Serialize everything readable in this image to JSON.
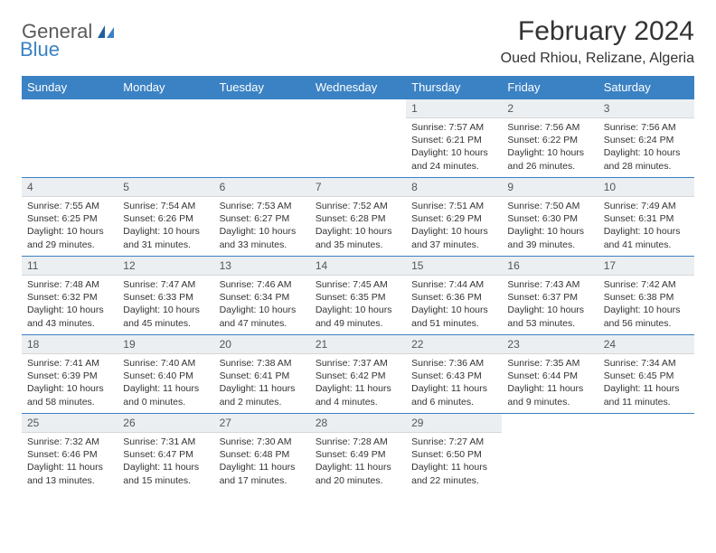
{
  "brand": {
    "name1": "General",
    "name2": "Blue"
  },
  "title": "February 2024",
  "location": "Oued Rhiou, Relizane, Algeria",
  "colors": {
    "accent": "#3b82c4",
    "daynum_bg": "#eceff1",
    "text": "#333333",
    "logo_gray": "#5a5a5a"
  },
  "dow": [
    "Sunday",
    "Monday",
    "Tuesday",
    "Wednesday",
    "Thursday",
    "Friday",
    "Saturday"
  ],
  "weeks": [
    [
      null,
      null,
      null,
      null,
      {
        "n": "1",
        "sr": "Sunrise: 7:57 AM",
        "ss": "Sunset: 6:21 PM",
        "dl": "Daylight: 10 hours and 24 minutes."
      },
      {
        "n": "2",
        "sr": "Sunrise: 7:56 AM",
        "ss": "Sunset: 6:22 PM",
        "dl": "Daylight: 10 hours and 26 minutes."
      },
      {
        "n": "3",
        "sr": "Sunrise: 7:56 AM",
        "ss": "Sunset: 6:24 PM",
        "dl": "Daylight: 10 hours and 28 minutes."
      }
    ],
    [
      {
        "n": "4",
        "sr": "Sunrise: 7:55 AM",
        "ss": "Sunset: 6:25 PM",
        "dl": "Daylight: 10 hours and 29 minutes."
      },
      {
        "n": "5",
        "sr": "Sunrise: 7:54 AM",
        "ss": "Sunset: 6:26 PM",
        "dl": "Daylight: 10 hours and 31 minutes."
      },
      {
        "n": "6",
        "sr": "Sunrise: 7:53 AM",
        "ss": "Sunset: 6:27 PM",
        "dl": "Daylight: 10 hours and 33 minutes."
      },
      {
        "n": "7",
        "sr": "Sunrise: 7:52 AM",
        "ss": "Sunset: 6:28 PM",
        "dl": "Daylight: 10 hours and 35 minutes."
      },
      {
        "n": "8",
        "sr": "Sunrise: 7:51 AM",
        "ss": "Sunset: 6:29 PM",
        "dl": "Daylight: 10 hours and 37 minutes."
      },
      {
        "n": "9",
        "sr": "Sunrise: 7:50 AM",
        "ss": "Sunset: 6:30 PM",
        "dl": "Daylight: 10 hours and 39 minutes."
      },
      {
        "n": "10",
        "sr": "Sunrise: 7:49 AM",
        "ss": "Sunset: 6:31 PM",
        "dl": "Daylight: 10 hours and 41 minutes."
      }
    ],
    [
      {
        "n": "11",
        "sr": "Sunrise: 7:48 AM",
        "ss": "Sunset: 6:32 PM",
        "dl": "Daylight: 10 hours and 43 minutes."
      },
      {
        "n": "12",
        "sr": "Sunrise: 7:47 AM",
        "ss": "Sunset: 6:33 PM",
        "dl": "Daylight: 10 hours and 45 minutes."
      },
      {
        "n": "13",
        "sr": "Sunrise: 7:46 AM",
        "ss": "Sunset: 6:34 PM",
        "dl": "Daylight: 10 hours and 47 minutes."
      },
      {
        "n": "14",
        "sr": "Sunrise: 7:45 AM",
        "ss": "Sunset: 6:35 PM",
        "dl": "Daylight: 10 hours and 49 minutes."
      },
      {
        "n": "15",
        "sr": "Sunrise: 7:44 AM",
        "ss": "Sunset: 6:36 PM",
        "dl": "Daylight: 10 hours and 51 minutes."
      },
      {
        "n": "16",
        "sr": "Sunrise: 7:43 AM",
        "ss": "Sunset: 6:37 PM",
        "dl": "Daylight: 10 hours and 53 minutes."
      },
      {
        "n": "17",
        "sr": "Sunrise: 7:42 AM",
        "ss": "Sunset: 6:38 PM",
        "dl": "Daylight: 10 hours and 56 minutes."
      }
    ],
    [
      {
        "n": "18",
        "sr": "Sunrise: 7:41 AM",
        "ss": "Sunset: 6:39 PM",
        "dl": "Daylight: 10 hours and 58 minutes."
      },
      {
        "n": "19",
        "sr": "Sunrise: 7:40 AM",
        "ss": "Sunset: 6:40 PM",
        "dl": "Daylight: 11 hours and 0 minutes."
      },
      {
        "n": "20",
        "sr": "Sunrise: 7:38 AM",
        "ss": "Sunset: 6:41 PM",
        "dl": "Daylight: 11 hours and 2 minutes."
      },
      {
        "n": "21",
        "sr": "Sunrise: 7:37 AM",
        "ss": "Sunset: 6:42 PM",
        "dl": "Daylight: 11 hours and 4 minutes."
      },
      {
        "n": "22",
        "sr": "Sunrise: 7:36 AM",
        "ss": "Sunset: 6:43 PM",
        "dl": "Daylight: 11 hours and 6 minutes."
      },
      {
        "n": "23",
        "sr": "Sunrise: 7:35 AM",
        "ss": "Sunset: 6:44 PM",
        "dl": "Daylight: 11 hours and 9 minutes."
      },
      {
        "n": "24",
        "sr": "Sunrise: 7:34 AM",
        "ss": "Sunset: 6:45 PM",
        "dl": "Daylight: 11 hours and 11 minutes."
      }
    ],
    [
      {
        "n": "25",
        "sr": "Sunrise: 7:32 AM",
        "ss": "Sunset: 6:46 PM",
        "dl": "Daylight: 11 hours and 13 minutes."
      },
      {
        "n": "26",
        "sr": "Sunrise: 7:31 AM",
        "ss": "Sunset: 6:47 PM",
        "dl": "Daylight: 11 hours and 15 minutes."
      },
      {
        "n": "27",
        "sr": "Sunrise: 7:30 AM",
        "ss": "Sunset: 6:48 PM",
        "dl": "Daylight: 11 hours and 17 minutes."
      },
      {
        "n": "28",
        "sr": "Sunrise: 7:28 AM",
        "ss": "Sunset: 6:49 PM",
        "dl": "Daylight: 11 hours and 20 minutes."
      },
      {
        "n": "29",
        "sr": "Sunrise: 7:27 AM",
        "ss": "Sunset: 6:50 PM",
        "dl": "Daylight: 11 hours and 22 minutes."
      },
      null,
      null
    ]
  ]
}
